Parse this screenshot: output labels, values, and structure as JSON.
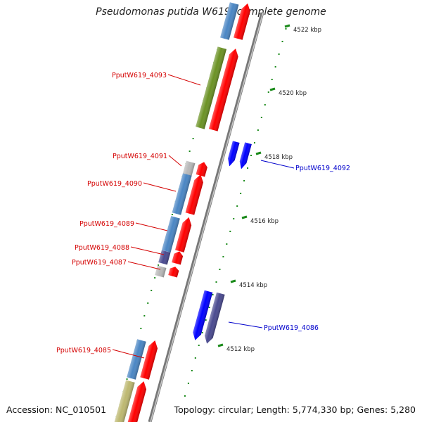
{
  "title": "Pseudomonas putida W619, complete genome",
  "footer": {
    "accession": "Accession: NC_010501",
    "topology": "Topology: circular; Length: 5,774,330 bp; Genes: 5,280"
  },
  "colors": {
    "forward_label": "#d40000",
    "reverse_label": "#0000cc",
    "ruler_tick": "#1a8a1a",
    "backbone": "#8a8a8a",
    "red": "#ff0000",
    "steelblue": "#4a86c4",
    "olive": "#6b9224",
    "khaki": "#bdb870",
    "grey": "#b8b8b8",
    "slate": "#4a4a90",
    "blue": "#0000ff"
  },
  "scale": {
    "unit": "kbp",
    "labels": [
      "4522 kbp",
      "4520 kbp",
      "4518 kbp",
      "4516 kbp",
      "4514 kbp",
      "4512 kbp"
    ]
  },
  "genes": [
    {
      "id": "PputW619_4093",
      "strand": "forward",
      "labeled": true
    },
    {
      "id": "PputW619_4092",
      "strand": "reverse",
      "labeled": true
    },
    {
      "id": "PputW619_4091",
      "strand": "forward",
      "labeled": true
    },
    {
      "id": "PputW619_4090",
      "strand": "forward",
      "labeled": true
    },
    {
      "id": "PputW619_4089",
      "strand": "forward",
      "labeled": true
    },
    {
      "id": "PputW619_4088",
      "strand": "forward",
      "labeled": true
    },
    {
      "id": "PputW619_4087",
      "strand": "forward",
      "labeled": true
    },
    {
      "id": "PputW619_4086",
      "strand": "reverse",
      "labeled": true
    },
    {
      "id": "PputW619_4085",
      "strand": "forward",
      "labeled": true
    }
  ]
}
